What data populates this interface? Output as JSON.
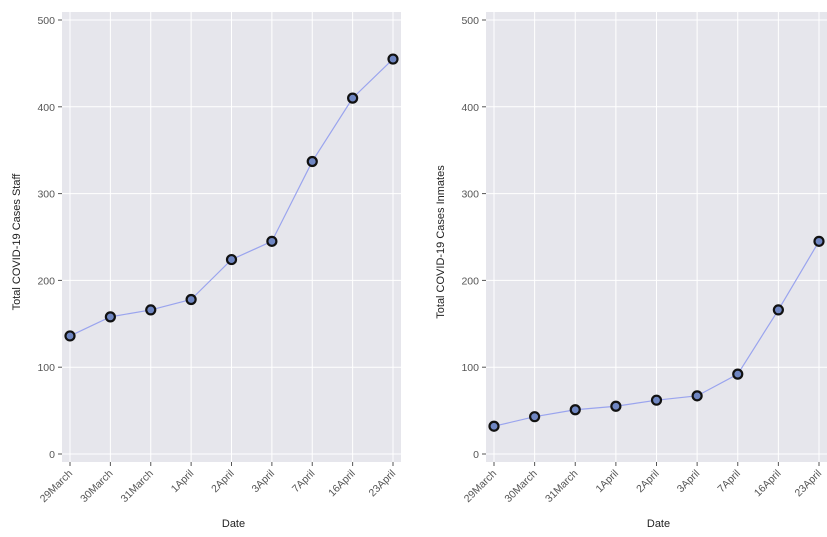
{
  "chart_data": [
    {
      "type": "line",
      "title": "",
      "xlabel": "Date",
      "ylabel": "Total COVID-19 Cases Staff",
      "categories": [
        "29March",
        "30March",
        "31March",
        "1April",
        "2April",
        "3April",
        "7April",
        "16April",
        "23April"
      ],
      "values": [
        136,
        158,
        166,
        178,
        224,
        245,
        337,
        410,
        455
      ],
      "ylim": [
        0,
        500
      ],
      "yticks": [
        0,
        100,
        200,
        300,
        400,
        500
      ],
      "grid": true,
      "colors": {
        "panel": "#e6e6ec",
        "grid": "#ffffff",
        "line": "#9aa4ee",
        "marker_fill": "#6f86c2",
        "marker_stroke": "#111111"
      }
    },
    {
      "type": "line",
      "title": "",
      "xlabel": "Date",
      "ylabel": "Total COVID-19 Cases Inmates",
      "categories": [
        "29March",
        "30March",
        "31March",
        "1April",
        "2April",
        "3April",
        "7April",
        "16April",
        "23April"
      ],
      "values": [
        32,
        43,
        51,
        55,
        62,
        67,
        92,
        166,
        245
      ],
      "ylim": [
        0,
        500
      ],
      "yticks": [
        0,
        100,
        200,
        300,
        400,
        500
      ],
      "grid": true,
      "colors": {
        "panel": "#e6e6ec",
        "grid": "#ffffff",
        "line": "#9aa4ee",
        "marker_fill": "#6f86c2",
        "marker_stroke": "#111111"
      }
    }
  ]
}
